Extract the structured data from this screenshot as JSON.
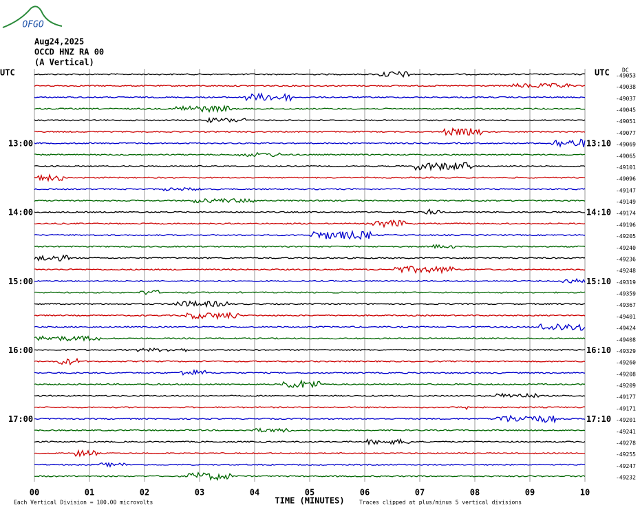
{
  "logo": "OFGO",
  "header": {
    "date": "Aug24,2025",
    "station": "OCCD HNZ RA 00",
    "component": "(A Vertical)"
  },
  "left_utc": "UTC",
  "right_utc": "UTC",
  "dc_label": "DC",
  "left_times": [
    "13:00",
    "14:00",
    "15:00",
    "16:00",
    "17:00"
  ],
  "right_times": [
    "13:10",
    "14:10",
    "15:10",
    "16:10",
    "17:10"
  ],
  "x_axis": {
    "title": "TIME (MINUTES)",
    "ticks": [
      "00",
      "01",
      "02",
      "03",
      "04",
      "05",
      "06",
      "07",
      "08",
      "09",
      "10"
    ]
  },
  "footer": {
    "scale": "Each Vertical Division =  100.00 microvolts",
    "clip": "Traces clipped at plus/minus 5 vertical divisions"
  },
  "trace_colors": [
    "#000000",
    "#cc0000",
    "#0000cc",
    "#006600"
  ],
  "offsets": [
    "-49053",
    "-49038",
    "-49037",
    "-49045",
    "-49051",
    "-49077",
    "-49069",
    "-49065",
    "-49101",
    "-49096",
    "-49147",
    "-49149",
    "-49174",
    "-49196",
    "-49205",
    "-49240",
    "-49236",
    "-49248",
    "-49319",
    "-49359",
    "-49367",
    "-49401",
    "-49424",
    "-49408",
    "-49329",
    "-49260",
    "-49208",
    "-49209",
    "-49177",
    "-49171",
    "-49201",
    "-49241",
    "-49278",
    "-49255",
    "-49247",
    "-49232"
  ]
}
